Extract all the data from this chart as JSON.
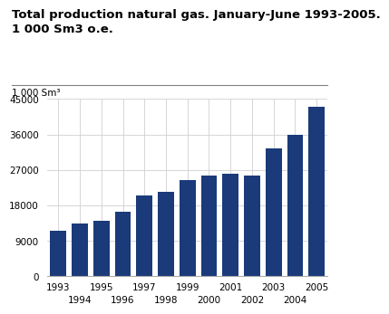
{
  "title_line1": "Total production natural gas. January-June 1993-2005.",
  "title_line2": "1 000 Sm3 o.e.",
  "ylabel": "1 000 Sm³",
  "categories": [
    "1993",
    "1994",
    "1995",
    "1996",
    "1997",
    "1998",
    "1999",
    "2000",
    "2001",
    "2002",
    "2003",
    "2004",
    "2005"
  ],
  "values": [
    11500,
    13500,
    14000,
    16500,
    20500,
    21500,
    24500,
    25500,
    26000,
    25500,
    32500,
    36000,
    43000
  ],
  "bar_color": "#1a3a7a",
  "ylim": [
    0,
    45000
  ],
  "yticks": [
    0,
    9000,
    18000,
    27000,
    36000,
    45000
  ],
  "background_color": "#ffffff",
  "title_fontsize": 9.5,
  "ylabel_fontsize": 7.5,
  "tick_fontsize": 7.5
}
